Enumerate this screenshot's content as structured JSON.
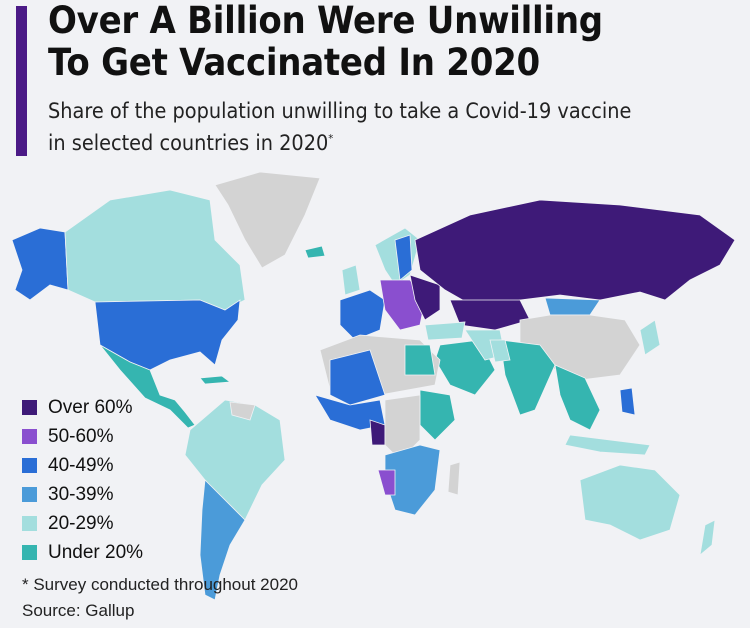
{
  "header": {
    "title_line1": "Over A Billion Were Unwilling",
    "title_line2": "To Get Vaccinated In 2020",
    "subtitle_line1": "Share of the population unwilling to take a Covid-19 vaccine",
    "subtitle_line2": "in selected countries in 2020",
    "subtitle_mark": "*"
  },
  "legend": [
    {
      "label": "Over 60%",
      "color": "#3e1a78"
    },
    {
      "label": "50-60%",
      "color": "#8a4fcf"
    },
    {
      "label": "40-49%",
      "color": "#2a6ed6"
    },
    {
      "label": "30-39%",
      "color": "#4b9bd9"
    },
    {
      "label": "20-29%",
      "color": "#a3dede"
    },
    {
      "label": "Under 20%",
      "color": "#35b5b0"
    }
  ],
  "no_data_color": "#d3d3d3",
  "accent_color": "#4b1a86",
  "footer": {
    "note": "* Survey conducted throughout 2020",
    "source": "Source: Gallup"
  }
}
